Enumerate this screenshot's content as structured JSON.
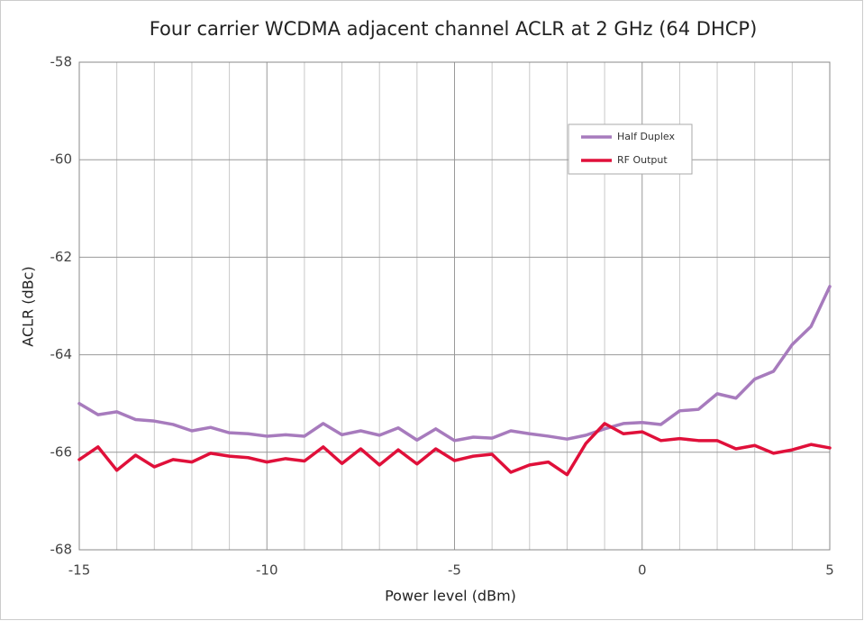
{
  "chart_data": {
    "type": "line",
    "title": "Four carrier WCDMA adjacent channel ACLR at 2 GHz (64 DHCP)",
    "xlabel": "Power level (dBm)",
    "ylabel": "ACLR (dBc)",
    "x": [
      -15,
      -14.5,
      -14,
      -13.5,
      -13,
      -12.5,
      -12,
      -11.5,
      -11,
      -10.5,
      -10,
      -9.5,
      -9,
      -8.5,
      -8,
      -7.5,
      -7,
      -6.5,
      -6,
      -5.5,
      -5,
      -4.5,
      -4,
      -3.5,
      -3,
      -2.5,
      -2,
      -1.5,
      -1,
      -0.5,
      0,
      0.5,
      1,
      1.5,
      2,
      2.5,
      3,
      3.5,
      4,
      4.5,
      5
    ],
    "series": [
      {
        "name": "Half Duplex",
        "color": "#a77bbd",
        "values": [
          -65.0,
          -65.23,
          -65.17,
          -65.33,
          -65.36,
          -65.43,
          -65.56,
          -65.49,
          -65.6,
          -65.62,
          -65.67,
          -65.64,
          -65.67,
          -65.41,
          -65.64,
          -65.56,
          -65.65,
          -65.5,
          -65.75,
          -65.52,
          -65.76,
          -65.69,
          -65.71,
          -65.56,
          -65.62,
          -65.67,
          -65.73,
          -65.65,
          -65.52,
          -65.41,
          -65.39,
          -65.43,
          -65.15,
          -65.12,
          -64.8,
          -64.89,
          -64.5,
          -64.34,
          -63.79,
          -63.42,
          -62.6
        ]
      },
      {
        "name": "RF Output",
        "color": "#e0103a",
        "values": [
          -66.15,
          -65.89,
          -66.37,
          -66.06,
          -66.3,
          -66.15,
          -66.2,
          -66.02,
          -66.08,
          -66.11,
          -66.2,
          -66.13,
          -66.18,
          -65.89,
          -66.23,
          -65.93,
          -66.26,
          -65.95,
          -66.24,
          -65.93,
          -66.17,
          -66.08,
          -66.04,
          -66.41,
          -66.26,
          -66.2,
          -66.46,
          -65.82,
          -65.41,
          -65.62,
          -65.58,
          -65.76,
          -65.72,
          -65.76,
          -65.76,
          -65.93,
          -65.86,
          -66.02,
          -65.95,
          -65.84,
          -65.91
        ]
      }
    ],
    "xlim": [
      -15,
      5
    ],
    "xticks": [
      -15,
      -10,
      -5,
      0,
      5
    ],
    "xminorticks": [
      -14,
      -13,
      -12,
      -11,
      -9,
      -8,
      -7,
      -6,
      -4,
      -3,
      -2,
      -1,
      1,
      2,
      3,
      4
    ],
    "ylim": [
      -68,
      -58
    ],
    "yticks": [
      -68,
      -66,
      -64,
      -62,
      -60,
      -58
    ],
    "grid": true,
    "legend": "upper right"
  }
}
